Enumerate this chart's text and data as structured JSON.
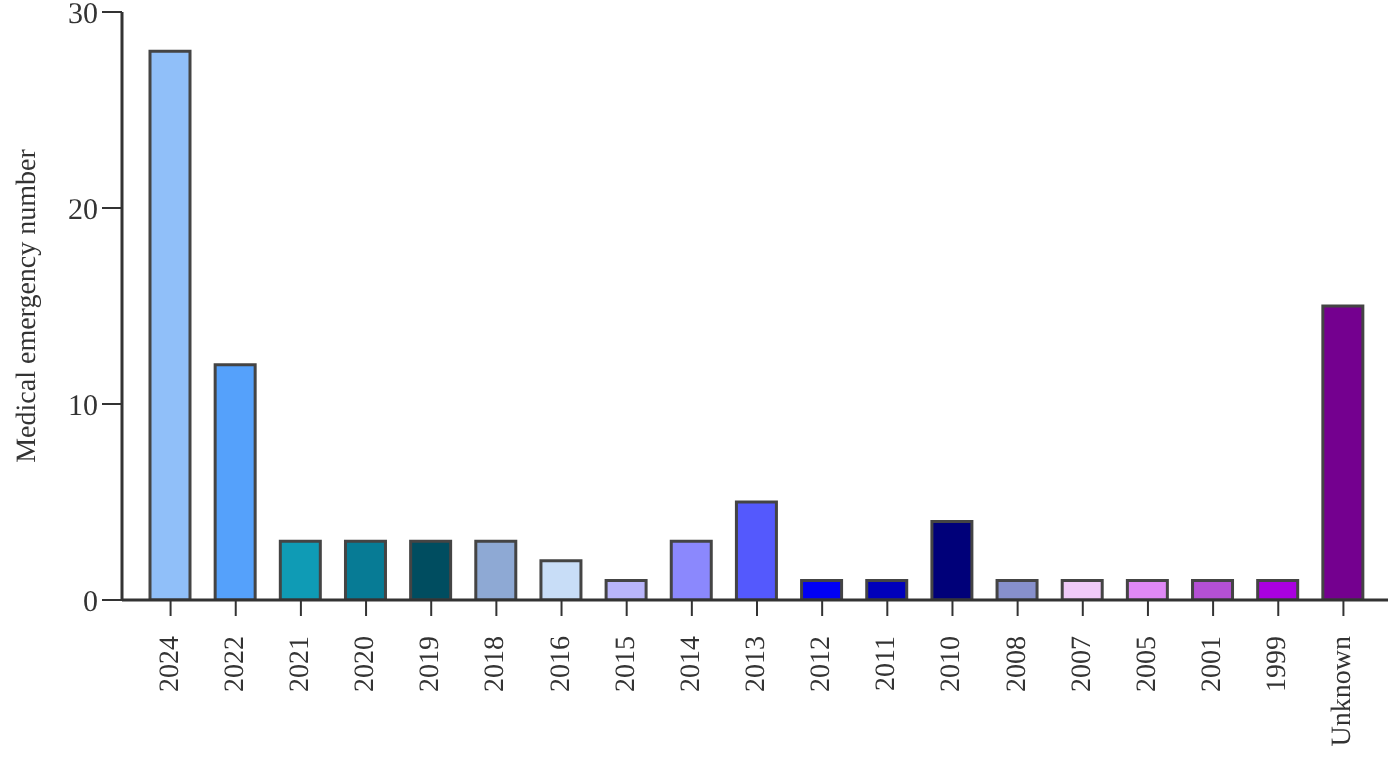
{
  "chart_data": {
    "type": "bar",
    "ylabel": "Medical emergency number",
    "categories": [
      "2024",
      "2022",
      "2021",
      "2020",
      "2019",
      "2018",
      "2016",
      "2015",
      "2014",
      "2013",
      "2012",
      "2011",
      "2010",
      "2008",
      "2007",
      "2005",
      "2001",
      "1999",
      "Unknown"
    ],
    "values": [
      28,
      12,
      3,
      3,
      3,
      3,
      2,
      1,
      3,
      5,
      1,
      1,
      4,
      1,
      1,
      1,
      1,
      1,
      15
    ],
    "colors": [
      "#90bff9",
      "#55a1fb",
      "#0f9bb5",
      "#077b95",
      "#004d60",
      "#8ea9d4",
      "#c8ddf7",
      "#b9b5fb",
      "#8b88fd",
      "#5459fd",
      "#0000f5",
      "#0000bb",
      "#000079",
      "#8790cc",
      "#efcaf8",
      "#df88f5",
      "#b450d4",
      "#aa00e0",
      "#74008f"
    ],
    "ylim": [
      0,
      30
    ],
    "yticks": [
      0,
      10,
      20,
      30
    ],
    "grid": false,
    "legend": false
  }
}
